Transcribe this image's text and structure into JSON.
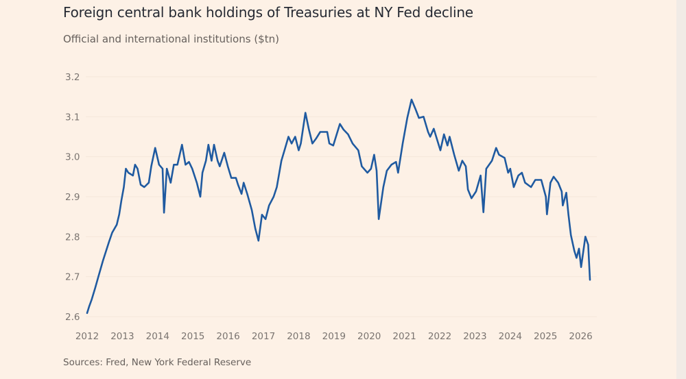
{
  "chart_data": {
    "type": "line",
    "title": "Foreign central bank holdings of Treasuries at NY Fed decline",
    "subtitle": "Official and international institutions ($tn)",
    "source": "Sources: Fred, New York Federal Reserve",
    "xlabel": "",
    "ylabel": "",
    "xlim": [
      2012,
      2026.3
    ],
    "ylim": [
      2.6,
      3.2
    ],
    "x_ticks": [
      "2012",
      "2013",
      "2014",
      "2015",
      "2016",
      "2017",
      "2018",
      "2019",
      "2020",
      "2021",
      "2022",
      "2023",
      "2024",
      "2025",
      "2026"
    ],
    "y_ticks": [
      "2.6",
      "2.7",
      "2.8",
      "2.9",
      "3.0",
      "3.1",
      "3.2"
    ],
    "grid": "horizontal-faint",
    "legend": "none",
    "line_color": "#1f5aa0",
    "background": "#fdf1e6",
    "series": [
      {
        "points": [
          [
            2012.0,
            2.609
          ],
          [
            2012.06,
            2.626
          ],
          [
            2012.13,
            2.643
          ],
          [
            2012.23,
            2.672
          ],
          [
            2012.32,
            2.7
          ],
          [
            2012.45,
            2.74
          ],
          [
            2012.62,
            2.787
          ],
          [
            2012.71,
            2.81
          ],
          [
            2012.84,
            2.83
          ],
          [
            2012.91,
            2.856
          ],
          [
            2012.97,
            2.89
          ],
          [
            2013.04,
            2.924
          ],
          [
            2013.1,
            2.97
          ],
          [
            2013.17,
            2.96
          ],
          [
            2013.3,
            2.953
          ],
          [
            2013.36,
            2.98
          ],
          [
            2013.43,
            2.97
          ],
          [
            2013.52,
            2.93
          ],
          [
            2013.62,
            2.924
          ],
          [
            2013.75,
            2.935
          ],
          [
            2013.82,
            2.976
          ],
          [
            2013.93,
            3.022
          ],
          [
            2014.04,
            2.98
          ],
          [
            2014.14,
            2.97
          ],
          [
            2014.18,
            2.86
          ],
          [
            2014.26,
            2.97
          ],
          [
            2014.37,
            2.935
          ],
          [
            2014.46,
            2.98
          ],
          [
            2014.56,
            2.98
          ],
          [
            2014.69,
            3.03
          ],
          [
            2014.79,
            2.98
          ],
          [
            2014.89,
            2.987
          ],
          [
            2014.98,
            2.97
          ],
          [
            2015.11,
            2.935
          ],
          [
            2015.21,
            2.9
          ],
          [
            2015.27,
            2.96
          ],
          [
            2015.37,
            2.99
          ],
          [
            2015.44,
            3.03
          ],
          [
            2015.53,
            2.99
          ],
          [
            2015.6,
            3.03
          ],
          [
            2015.7,
            2.99
          ],
          [
            2015.76,
            2.976
          ],
          [
            2015.89,
            3.01
          ],
          [
            2015.99,
            2.976
          ],
          [
            2016.09,
            2.947
          ],
          [
            2016.22,
            2.947
          ],
          [
            2016.28,
            2.93
          ],
          [
            2016.38,
            2.907
          ],
          [
            2016.44,
            2.935
          ],
          [
            2016.54,
            2.907
          ],
          [
            2016.67,
            2.867
          ],
          [
            2016.77,
            2.82
          ],
          [
            2016.86,
            2.79
          ],
          [
            2016.96,
            2.855
          ],
          [
            2017.06,
            2.844
          ],
          [
            2017.16,
            2.878
          ],
          [
            2017.29,
            2.9
          ],
          [
            2017.38,
            2.924
          ],
          [
            2017.51,
            2.99
          ],
          [
            2017.61,
            3.02
          ],
          [
            2017.71,
            3.05
          ],
          [
            2017.8,
            3.033
          ],
          [
            2017.9,
            3.05
          ],
          [
            2018.0,
            3.016
          ],
          [
            2018.06,
            3.033
          ],
          [
            2018.19,
            3.11
          ],
          [
            2018.29,
            3.068
          ],
          [
            2018.39,
            3.033
          ],
          [
            2018.49,
            3.045
          ],
          [
            2018.61,
            3.062
          ],
          [
            2018.81,
            3.062
          ],
          [
            2018.87,
            3.033
          ],
          [
            2018.98,
            3.028
          ],
          [
            2019.17,
            3.082
          ],
          [
            2019.27,
            3.068
          ],
          [
            2019.4,
            3.056
          ],
          [
            2019.53,
            3.033
          ],
          [
            2019.69,
            3.016
          ],
          [
            2019.79,
            2.976
          ],
          [
            2019.95,
            2.96
          ],
          [
            2020.05,
            2.97
          ],
          [
            2020.14,
            3.005
          ],
          [
            2020.21,
            2.965
          ],
          [
            2020.27,
            2.844
          ],
          [
            2020.4,
            2.924
          ],
          [
            2020.5,
            2.965
          ],
          [
            2020.63,
            2.98
          ],
          [
            2020.76,
            2.987
          ],
          [
            2020.82,
            2.96
          ],
          [
            2020.95,
            3.033
          ],
          [
            2021.08,
            3.097
          ],
          [
            2021.2,
            3.143
          ],
          [
            2021.31,
            3.12
          ],
          [
            2021.41,
            3.097
          ],
          [
            2021.54,
            3.1
          ],
          [
            2021.67,
            3.062
          ],
          [
            2021.73,
            3.05
          ],
          [
            2021.83,
            3.07
          ],
          [
            2021.96,
            3.033
          ],
          [
            2022.02,
            3.016
          ],
          [
            2022.12,
            3.056
          ],
          [
            2022.22,
            3.028
          ],
          [
            2022.28,
            3.05
          ],
          [
            2022.41,
            3.005
          ],
          [
            2022.54,
            2.965
          ],
          [
            2022.64,
            2.99
          ],
          [
            2022.74,
            2.976
          ],
          [
            2022.8,
            2.918
          ],
          [
            2022.9,
            2.896
          ],
          [
            2023.03,
            2.913
          ],
          [
            2023.16,
            2.953
          ],
          [
            2023.24,
            2.861
          ],
          [
            2023.32,
            2.97
          ],
          [
            2023.48,
            2.99
          ],
          [
            2023.6,
            3.022
          ],
          [
            2023.68,
            3.005
          ],
          [
            2023.84,
            2.997
          ],
          [
            2023.94,
            2.96
          ],
          [
            2024.0,
            2.97
          ],
          [
            2024.1,
            2.924
          ],
          [
            2024.23,
            2.953
          ],
          [
            2024.33,
            2.96
          ],
          [
            2024.42,
            2.935
          ],
          [
            2024.59,
            2.924
          ],
          [
            2024.71,
            2.942
          ],
          [
            2024.88,
            2.942
          ],
          [
            2025.01,
            2.9
          ],
          [
            2025.04,
            2.856
          ],
          [
            2025.14,
            2.935
          ],
          [
            2025.23,
            2.95
          ],
          [
            2025.36,
            2.935
          ],
          [
            2025.46,
            2.913
          ],
          [
            2025.49,
            2.878
          ],
          [
            2025.59,
            2.91
          ],
          [
            2025.65,
            2.856
          ],
          [
            2025.72,
            2.804
          ],
          [
            2025.82,
            2.764
          ],
          [
            2025.88,
            2.747
          ],
          [
            2025.95,
            2.77
          ],
          [
            2026.01,
            2.724
          ],
          [
            2026.13,
            2.8
          ],
          [
            2026.21,
            2.78
          ],
          [
            2026.26,
            2.692
          ]
        ]
      }
    ]
  }
}
